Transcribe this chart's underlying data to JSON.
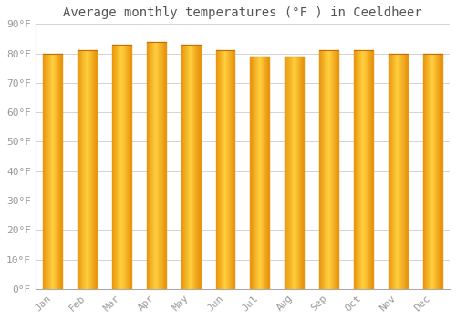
{
  "title": "Average monthly temperatures (°F ) in Ceeldheer",
  "months": [
    "Jan",
    "Feb",
    "Mar",
    "Apr",
    "May",
    "Jun",
    "Jul",
    "Aug",
    "Sep",
    "Oct",
    "Nov",
    "Dec"
  ],
  "values": [
    80,
    81,
    83,
    84,
    83,
    81,
    79,
    79,
    81,
    81,
    80,
    80
  ],
  "bar_color_center": "#FFD040",
  "bar_color_edge": "#E8920A",
  "background_color": "#FFFFFF",
  "plot_bg_color": "#FFFFFF",
  "grid_color": "#CCCCCC",
  "ylim": [
    0,
    90
  ],
  "yticks": [
    0,
    10,
    20,
    30,
    40,
    50,
    60,
    70,
    80,
    90
  ],
  "ytick_labels": [
    "0°F",
    "10°F",
    "20°F",
    "30°F",
    "40°F",
    "50°F",
    "60°F",
    "70°F",
    "80°F",
    "90°F"
  ],
  "title_fontsize": 10,
  "tick_fontsize": 8,
  "font_color": "#999999",
  "title_color": "#555555",
  "bar_width": 0.55,
  "n_gradient_strips": 20
}
